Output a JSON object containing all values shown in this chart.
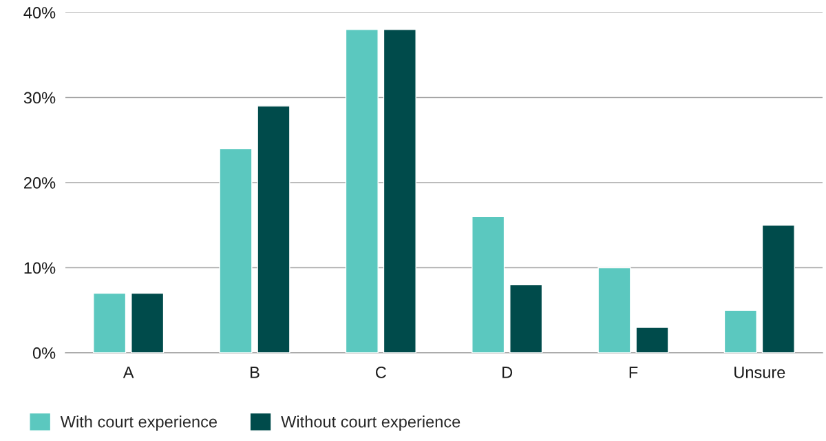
{
  "chart_data": {
    "type": "bar",
    "categories": [
      "A",
      "B",
      "C",
      "D",
      "F",
      "Unsure"
    ],
    "series": [
      {
        "name": "With court experience",
        "color": "#5bc8bf",
        "values": [
          7,
          24,
          38,
          16,
          10,
          5
        ]
      },
      {
        "name": "Without court experience",
        "color": "#004b4b",
        "values": [
          7,
          29,
          38,
          8,
          3,
          15
        ]
      }
    ],
    "ylim": [
      0,
      40
    ],
    "yticks": [
      {
        "value": 0,
        "label": "0%"
      },
      {
        "value": 10,
        "label": "10%"
      },
      {
        "value": 20,
        "label": "20%"
      },
      {
        "value": 30,
        "label": "30%"
      },
      {
        "value": 40,
        "label": "40%"
      }
    ],
    "grid": "y",
    "legend": "bottom left"
  }
}
